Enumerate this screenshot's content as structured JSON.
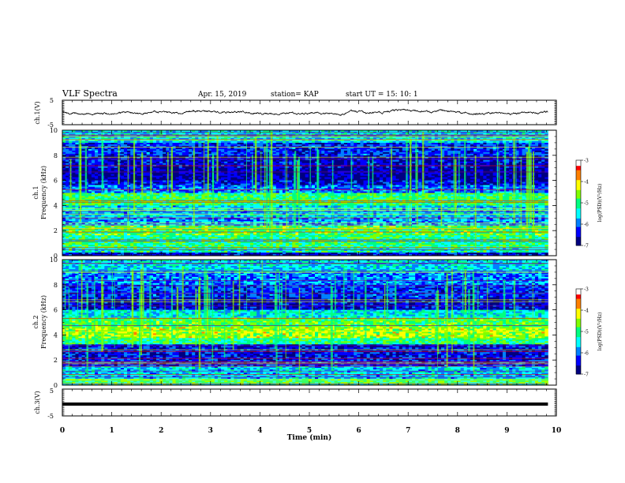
{
  "header": {
    "title": "VLF Spectra",
    "date": "Apr. 15, 2019",
    "station": "station= KAP",
    "start": "start  UT  =   15: 10: 1"
  },
  "chart_data": {
    "type": "heatmap",
    "xlabel": "Time  (min)",
    "xlim": [
      0,
      10
    ],
    "x_ticks": [
      "0",
      "1",
      "2",
      "3",
      "4",
      "5",
      "6",
      "7",
      "8",
      "9",
      "10"
    ],
    "data_extent_min": 9.83,
    "panels": [
      {
        "id": "ch1_waveform",
        "type": "line",
        "ylabel": "ch.1(V)",
        "ylim": [
          -5,
          5
        ],
        "y_ticks": [
          "5",
          "-5"
        ],
        "trace_baseline": 0,
        "trace_color": "#000000"
      },
      {
        "id": "ch1_spectrogram",
        "type": "heatmap",
        "ylabel_top": "ch.1",
        "ylabel": "Frequency  (kHz)",
        "ylim": [
          0,
          10
        ],
        "y_ticks": [
          "0",
          "2",
          "4",
          "6",
          "8",
          "10"
        ],
        "colorbar": {
          "label": "log(PSD)(V²/Hz)",
          "range": [
            -7,
            -3
          ],
          "ticks": [
            "-3",
            "-4",
            "-5",
            "-6",
            "-7"
          ]
        },
        "bands": [
          {
            "f": [
              0.0,
              0.3
            ],
            "level": -6.5
          },
          {
            "f": [
              0.3,
              0.6
            ],
            "level": -5.2
          },
          {
            "f": [
              0.6,
              1.6
            ],
            "level": -5.0
          },
          {
            "f": [
              1.6,
              2.4
            ],
            "level": -4.8
          },
          {
            "f": [
              2.4,
              3.0
            ],
            "level": -5.8
          },
          {
            "f": [
              3.0,
              4.0
            ],
            "level": -5.6
          },
          {
            "f": [
              4.0,
              5.0
            ],
            "level": -4.9
          },
          {
            "f": [
              5.0,
              5.6
            ],
            "level": -6.0
          },
          {
            "f": [
              5.6,
              6.0
            ],
            "level": -6.4
          },
          {
            "f": [
              6.0,
              7.0
            ],
            "level": -6.7
          },
          {
            "f": [
              7.0,
              8.0
            ],
            "level": -6.5
          },
          {
            "f": [
              8.0,
              9.0
            ],
            "level": -6.2
          },
          {
            "f": [
              9.0,
              10.0
            ],
            "level": -5.5
          }
        ]
      },
      {
        "id": "ch2_spectrogram",
        "type": "heatmap",
        "ylabel_top": "ch.2",
        "ylabel": "Frequency  (kHz)",
        "ylim": [
          0,
          10
        ],
        "y_ticks": [
          "0",
          "2",
          "4",
          "6",
          "8",
          "10"
        ],
        "colorbar": {
          "label": "log(PSD)(V²/Hz)",
          "range": [
            -7,
            -3
          ],
          "ticks": [
            "-3",
            "-4",
            "-5",
            "-6",
            "-7"
          ]
        },
        "bands": [
          {
            "f": [
              0.0,
              0.5
            ],
            "level": -5.0
          },
          {
            "f": [
              0.5,
              1.5
            ],
            "level": -5.6
          },
          {
            "f": [
              1.5,
              2.0
            ],
            "level": -6.2
          },
          {
            "f": [
              2.0,
              3.2
            ],
            "level": -6.4
          },
          {
            "f": [
              3.2,
              3.8
            ],
            "level": -5.0
          },
          {
            "f": [
              3.8,
              4.6
            ],
            "level": -4.4
          },
          {
            "f": [
              4.6,
              5.4
            ],
            "level": -4.8
          },
          {
            "f": [
              5.4,
              6.0
            ],
            "level": -5.4
          },
          {
            "f": [
              6.0,
              7.0
            ],
            "level": -6.5
          },
          {
            "f": [
              7.0,
              8.0
            ],
            "level": -6.2
          },
          {
            "f": [
              8.0,
              9.0
            ],
            "level": -5.9
          },
          {
            "f": [
              9.0,
              10.0
            ],
            "level": -5.5
          }
        ]
      },
      {
        "id": "ch3_waveform",
        "type": "line",
        "ylabel": "ch.3(V)",
        "ylim": [
          -5,
          5
        ],
        "y_ticks": [
          "5",
          "-5"
        ],
        "trace_value": 0,
        "trace_color": "#000000"
      }
    ]
  },
  "colors": {
    "colormap": [
      "#000080",
      "#0000ff",
      "#0080ff",
      "#00ffff",
      "#00ff80",
      "#80ff00",
      "#ffff00",
      "#ff8000",
      "#ff0000",
      "#ffffff"
    ]
  }
}
